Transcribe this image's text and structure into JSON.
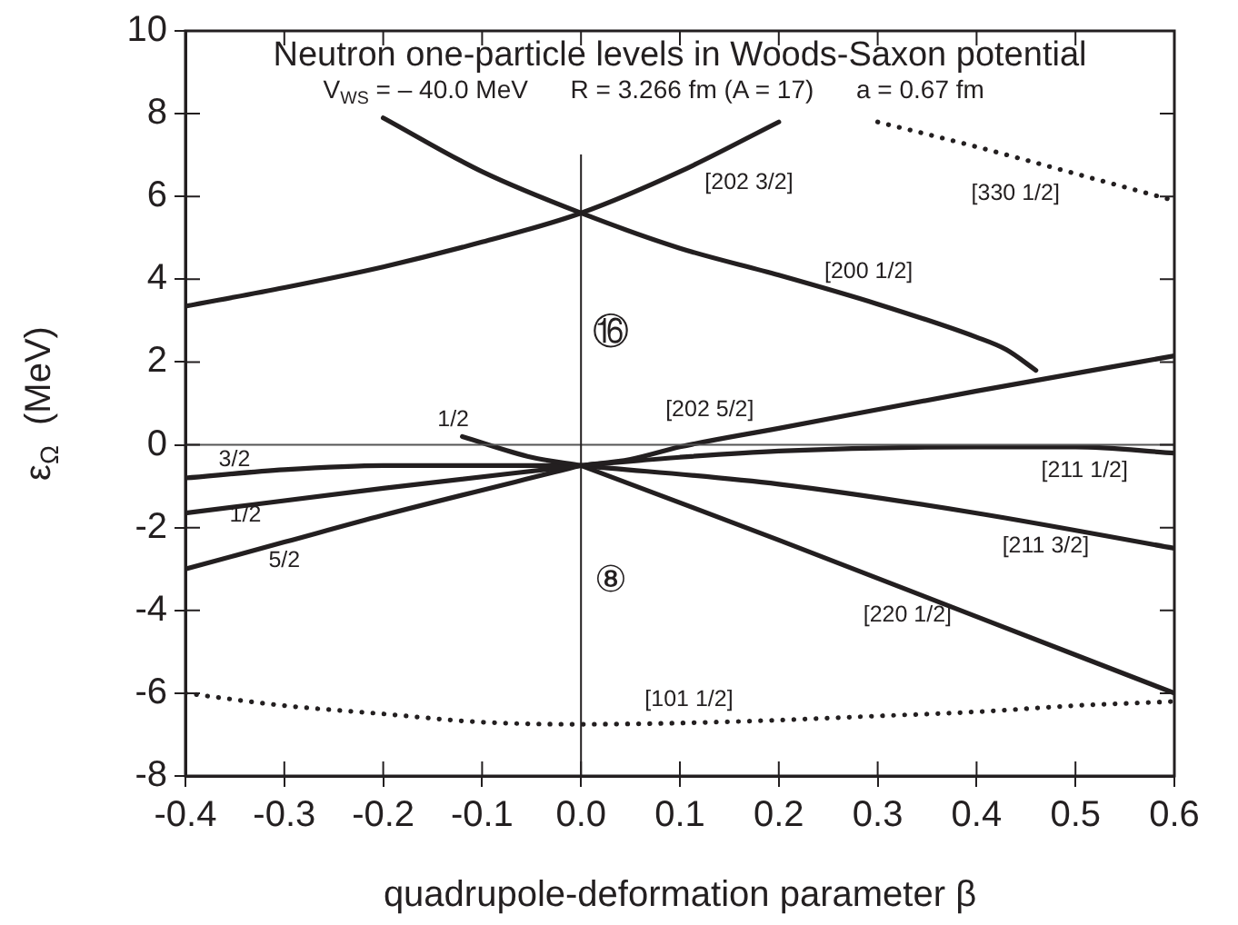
{
  "chart_data": {
    "type": "line",
    "title": "Neutron one-particle levels in Woods-Saxon potential",
    "subtitle": "V$_{WS}$ = – 40.0 MeV      R = 3.266 fm (A = 17)      a = 0.67 fm",
    "xlabel": "quadrupole-deformation parameter β",
    "ylabel": "ε$_{Ω}$  (MeV)",
    "xlim": [
      -0.4,
      0.6
    ],
    "ylim": [
      -8,
      10
    ],
    "xticks": [
      -0.4,
      -0.3,
      -0.2,
      -0.1,
      {
        "value": 0,
        "label": "0.0"
      },
      0.1,
      0.2,
      0.3,
      0.4,
      0.5,
      0.6
    ],
    "yticks": [
      -8,
      -6,
      -4,
      -2,
      0,
      2,
      4,
      6,
      8,
      10
    ],
    "grid": false,
    "legend": false,
    "marker": "none",
    "series": [
      {
        "color": "#231f20",
        "line_style": "solid",
        "x": [
          -0.4,
          -0.3,
          -0.2,
          -0.1,
          0,
          0.1,
          0.2
        ],
        "values": [
          3.35,
          3.8,
          4.3,
          4.9,
          5.6,
          6.6,
          7.8
        ]
      },
      {
        "color": "#231f20",
        "line_style": "solid",
        "x": [
          -0.2,
          -0.1,
          0,
          0.1,
          0.2,
          0.3,
          0.4,
          0.43,
          0.46
        ],
        "values": [
          7.9,
          6.6,
          5.6,
          4.75,
          4.1,
          3.4,
          2.6,
          2.3,
          1.8
        ]
      },
      {
        "color": "#231f20",
        "line_style": "dotted",
        "x": [
          0.3,
          0.4,
          0.5,
          0.6
        ],
        "values": [
          7.8,
          7.2,
          6.55,
          5.9
        ]
      },
      {
        "color": "#231f20",
        "line_style": "solid",
        "x": [
          0,
          0.05,
          0.1,
          0.2,
          0.4,
          0.6
        ],
        "values": [
          -0.5,
          -0.35,
          -0.05,
          0.4,
          1.3,
          2.15
        ]
      },
      {
        "color": "#231f20",
        "line_style": "solid",
        "x": [
          -0.12,
          -0.05,
          0
        ],
        "values": [
          0.2,
          -0.3,
          -0.5
        ]
      },
      {
        "color": "#231f20",
        "line_style": "solid",
        "x": [
          -0.4,
          -0.3,
          -0.2,
          -0.1,
          0
        ],
        "values": [
          -0.8,
          -0.6,
          -0.5,
          -0.5,
          -0.5
        ]
      },
      {
        "color": "#231f20",
        "line_style": "solid",
        "x": [
          -0.4,
          -0.2,
          0
        ],
        "values": [
          -1.65,
          -1.05,
          -0.5
        ]
      },
      {
        "color": "#231f20",
        "line_style": "solid",
        "x": [
          -0.4,
          -0.3,
          -0.2,
          0
        ],
        "values": [
          -3.0,
          -2.35,
          -1.7,
          -0.5
        ]
      },
      {
        "color": "#231f20",
        "line_style": "solid",
        "x": [
          0,
          0.1,
          0.2,
          0.4,
          0.5,
          0.6
        ],
        "values": [
          -0.5,
          -0.3,
          -0.15,
          -0.05,
          -0.05,
          -0.2
        ]
      },
      {
        "color": "#231f20",
        "line_style": "solid",
        "x": [
          0,
          0.2,
          0.4,
          0.6
        ],
        "values": [
          -0.5,
          -0.95,
          -1.65,
          -2.5
        ]
      },
      {
        "color": "#231f20",
        "line_style": "solid",
        "x": [
          0,
          0.2,
          0.4,
          0.6
        ],
        "values": [
          -0.5,
          -2.3,
          -4.15,
          -6.0
        ]
      },
      {
        "color": "#231f20",
        "line_style": "dotted",
        "x": [
          -0.4,
          -0.3,
          -0.2,
          -0.1,
          0,
          0.1,
          0.2,
          0.3,
          0.4,
          0.5,
          0.6
        ],
        "values": [
          -6.0,
          -6.3,
          -6.5,
          -6.7,
          -6.75,
          -6.72,
          -6.65,
          -6.55,
          -6.45,
          -6.3,
          -6.2
        ]
      }
    ],
    "ref_lines": [
      {
        "axis": "y",
        "value": 0,
        "color": "#555555"
      },
      {
        "axis": "x",
        "value": 0,
        "color": "#231f20"
      }
    ],
    "annotations": [
      {
        "text": "[202 3/2]",
        "x": 0.1,
        "y": 6.6
      },
      {
        "text": "[330 1/2]",
        "x": 0.5,
        "y": 6.55
      },
      {
        "text": "[200 1/2]",
        "x": 0.3,
        "y": 3.4
      },
      "⑯",
      {
        "text": "[202 5/2]",
        "x": 0.2,
        "y": 0.4
      },
      {
        "text": "1/2",
        "x": -0.12,
        "y": 0.2
      },
      {
        "text": "3/2",
        "x": -0.4,
        "y": -0.8
      },
      {
        "text": "1/2",
        "x": -0.4,
        "y": -1.65
      },
      {
        "text": "5/2",
        "x": -0.3,
        "y": -2.35
      },
      {
        "text": "[211 1/2]",
        "x": 0.5,
        "y": -0.05
      },
      {
        "text": "[211 3/2]",
        "x": 0.4,
        "y": -1.65
      },
      "⑧",
      {
        "text": "[220 1/2]",
        "x": 0.4,
        "y": -4.15
      },
      {
        "text": "[101 1/2]",
        "x": 0.1,
        "y": -6.72
      }
    ]
  }
}
